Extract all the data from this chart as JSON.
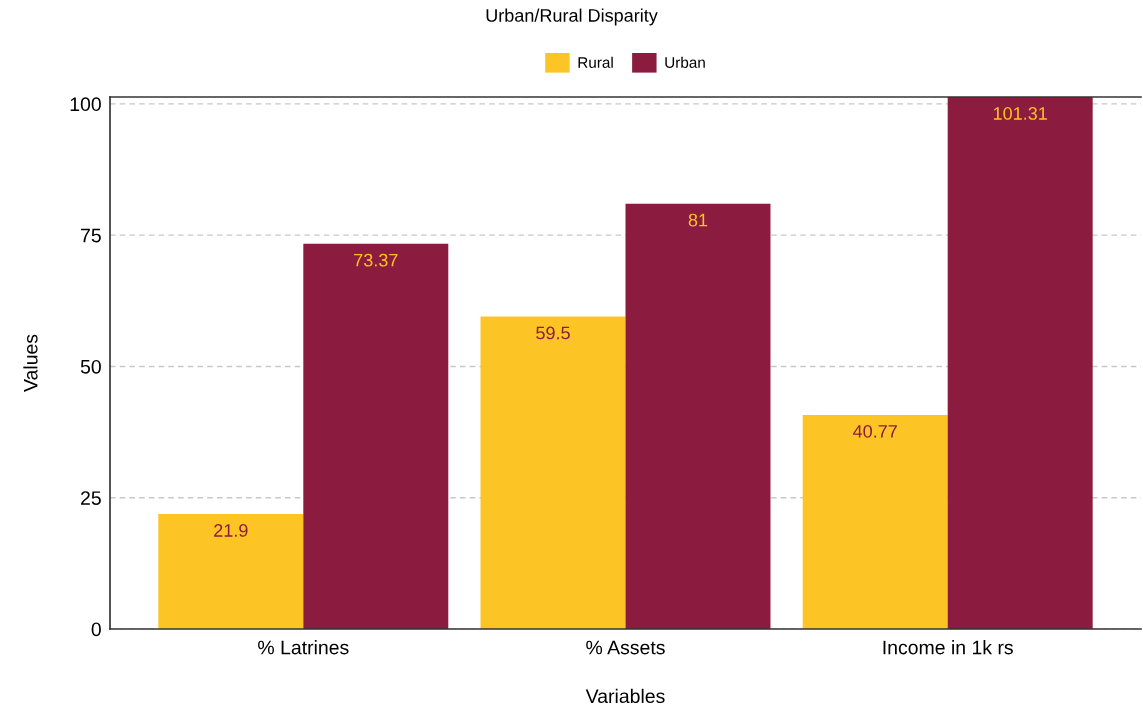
{
  "chart_data": {
    "type": "bar",
    "title": "Urban/Rural Disparity",
    "xlabel": "Variables",
    "ylabel": "Values",
    "categories": [
      "% Latrines",
      "% Assets",
      "Income in 1k rs"
    ],
    "series": [
      {
        "name": "Rural",
        "color": "#fcc425",
        "values": [
          21.9,
          59.5,
          40.77
        ]
      },
      {
        "name": "Urban",
        "color": "#8b1c3f",
        "values": [
          73.37,
          81,
          101.31
        ]
      }
    ],
    "ylim": [
      0,
      101.31
    ],
    "yticks": [
      0,
      25,
      50,
      75,
      100
    ],
    "grid": "y",
    "legend": "top",
    "data_labels": true
  }
}
